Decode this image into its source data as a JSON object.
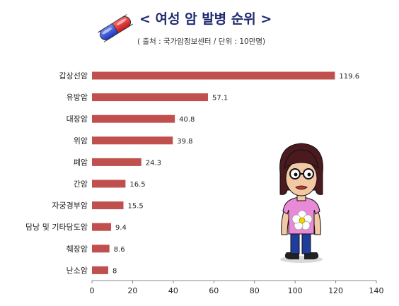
{
  "header": {
    "title": "< 여성 암 발병 순위 >",
    "subtitle": "( 출처 : 국가암정보센터 / 단위 : 10만명)"
  },
  "icons": {
    "title_icon": "capsule-pill-icon",
    "character": "cartoon-girl-illustration"
  },
  "colors": {
    "bar": "#c0504d",
    "title": "#1e2a6e",
    "axis": "#888888"
  },
  "chart_data": {
    "type": "bar",
    "orientation": "horizontal",
    "title": "< 여성 암 발병 순위 >",
    "subtitle": "( 출처 : 국가암정보센터 / 단위 : 10만명)",
    "categories": [
      "갑상선암",
      "유방암",
      "대장암",
      "위암",
      "폐암",
      "간암",
      "자궁경부암",
      "담낭 및 기타담도암",
      "췌장암",
      "난소암"
    ],
    "values": [
      119.6,
      57.1,
      40.8,
      39.8,
      24.3,
      16.5,
      15.5,
      9.4,
      8.6,
      8
    ],
    "value_labels": [
      "119.6",
      "57.1",
      "40.8",
      "39.8",
      "24.3",
      "16.5",
      "15.5",
      "9.4",
      "8.6",
      "8"
    ],
    "xlim": [
      0,
      140
    ],
    "xticks": [
      0,
      20,
      40,
      60,
      80,
      100,
      120,
      140
    ],
    "xlabel": "",
    "ylabel": "",
    "grid": false,
    "legend": "none"
  }
}
